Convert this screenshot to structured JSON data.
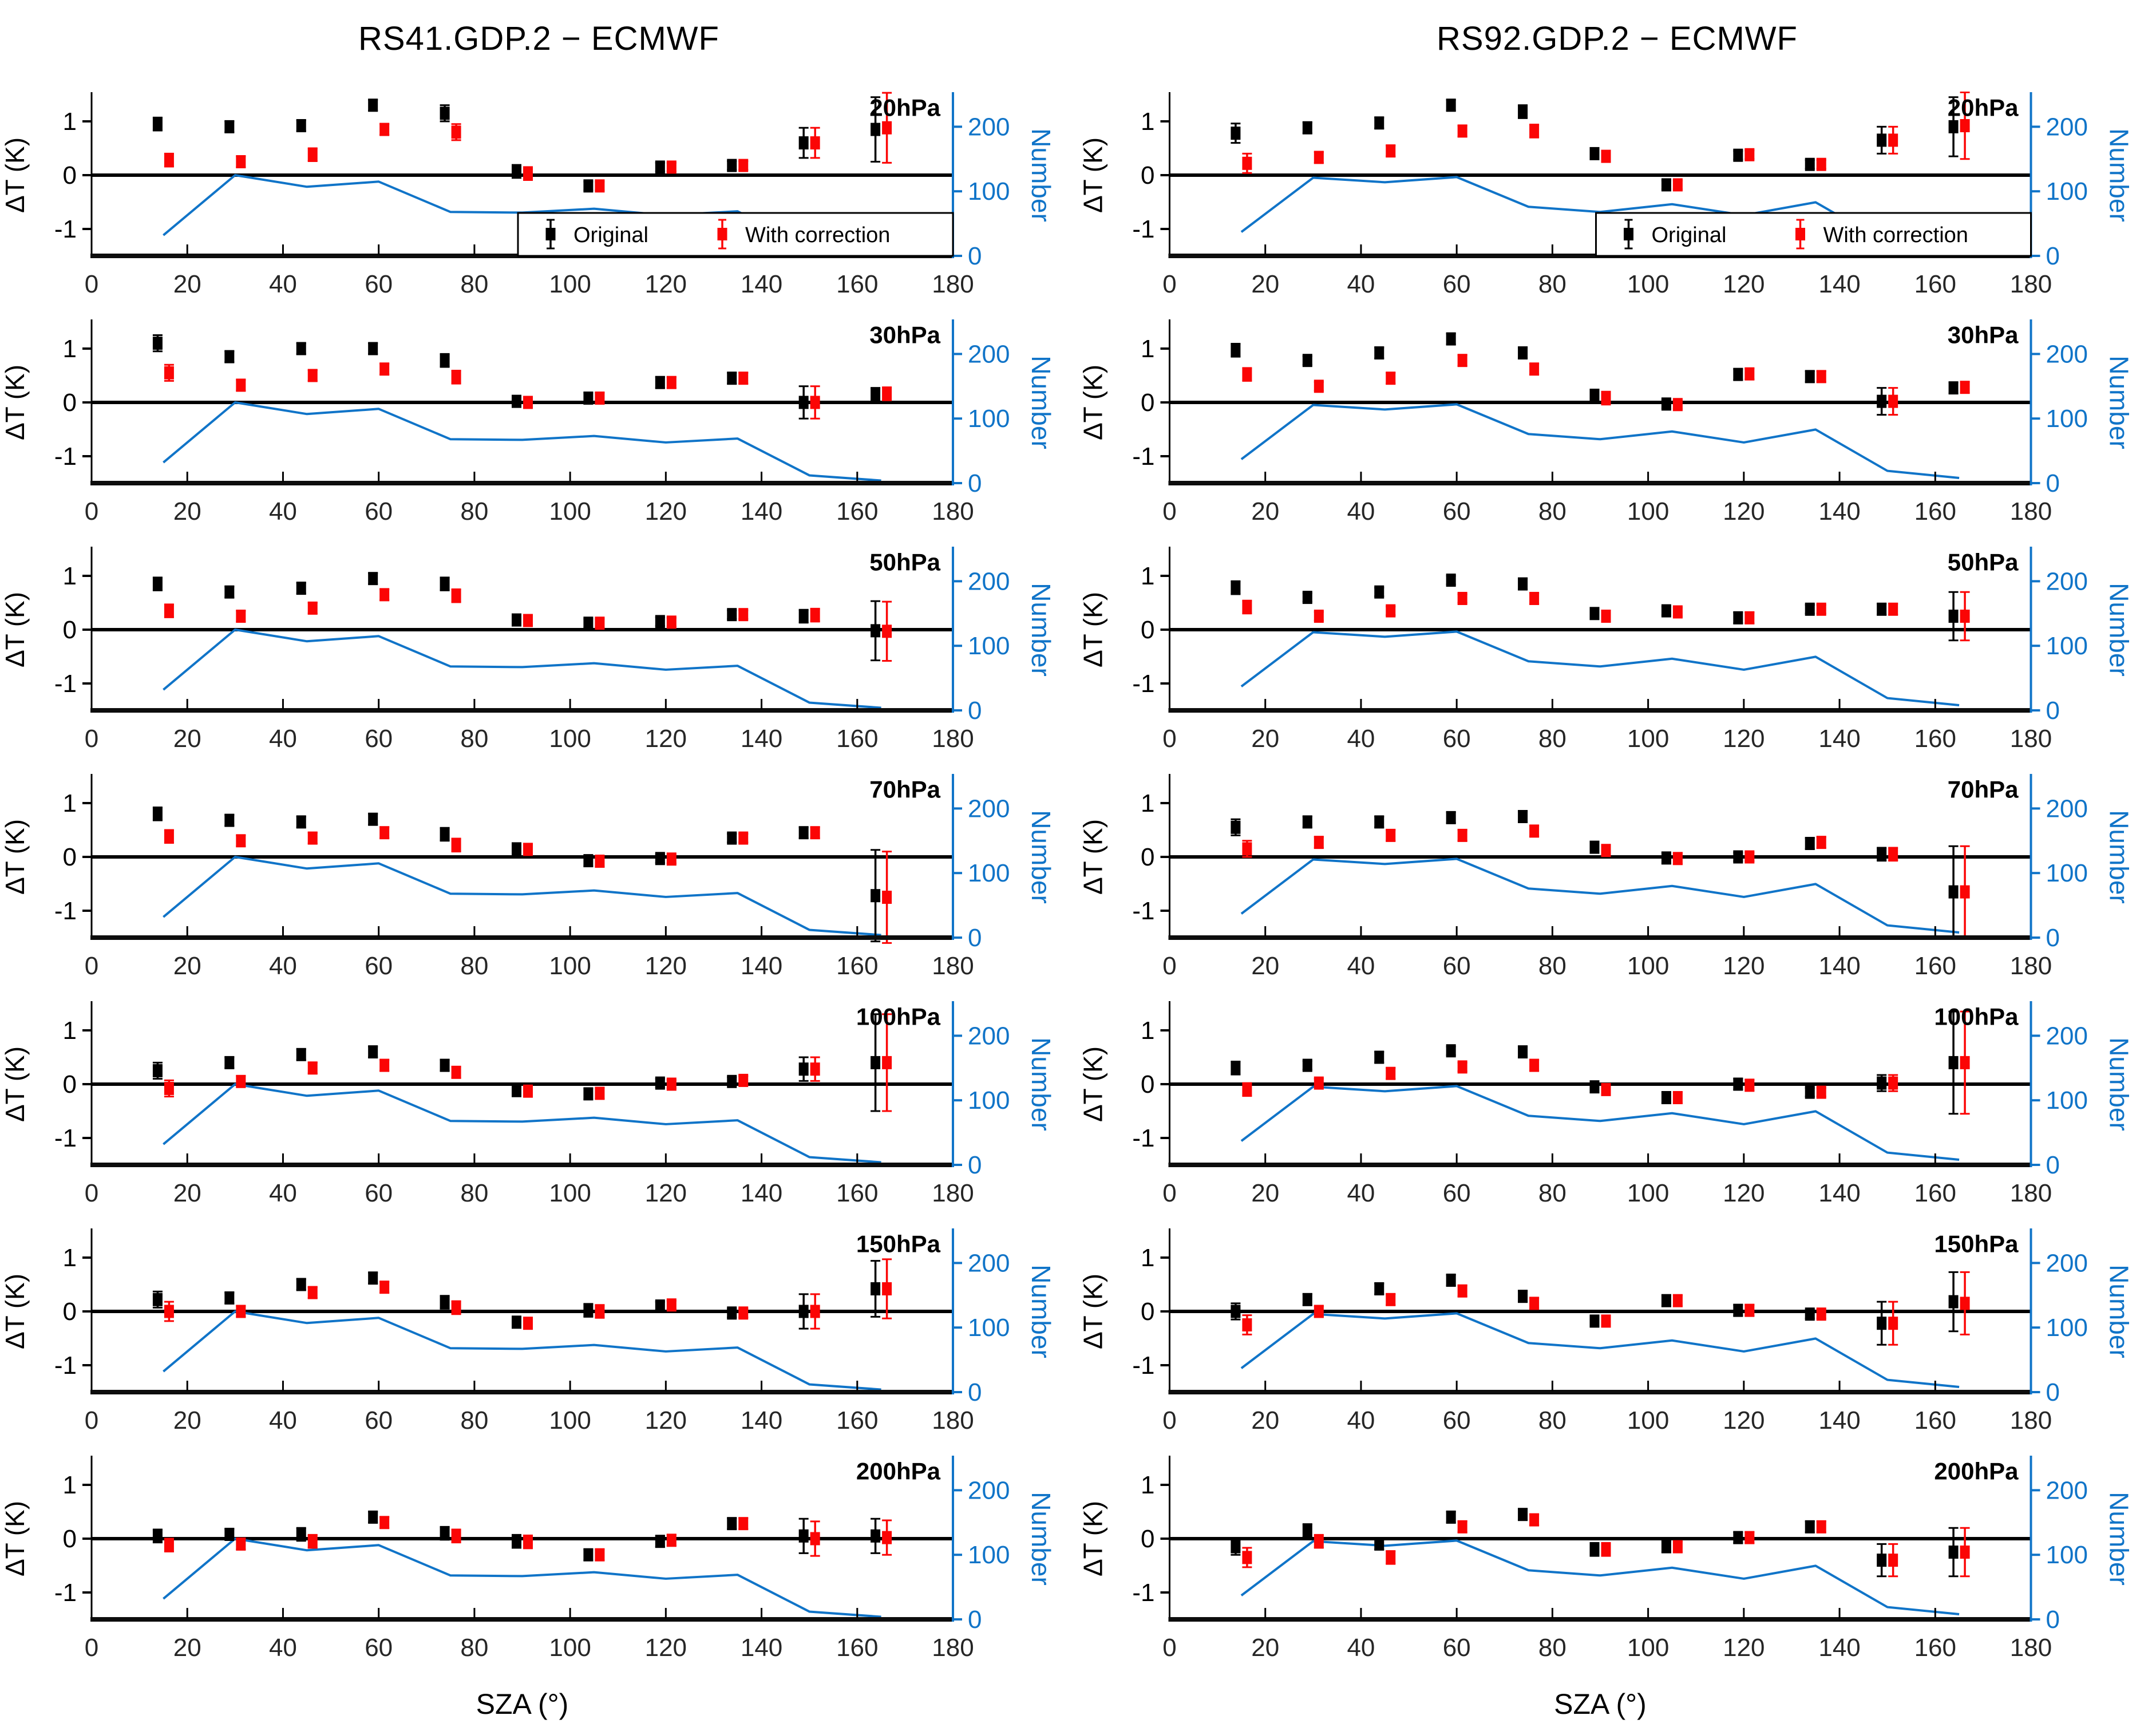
{
  "chart_data": {
    "type": "scatter",
    "subtype": "7x2 panel grid, squares with error bars plus secondary-axis count line",
    "xlabel": "SZA (°)",
    "ylabel": "ΔT (K)",
    "y2label": "Number",
    "x": [
      15,
      30,
      45,
      60,
      75,
      90,
      105,
      120,
      135,
      150,
      165
    ],
    "x_ticks": [
      0,
      20,
      40,
      60,
      80,
      100,
      120,
      140,
      160,
      180
    ],
    "xlim": [
      0,
      180
    ],
    "y_ticks": [
      -1,
      0,
      1
    ],
    "ylim": [
      -1.5,
      1.5
    ],
    "y2_ticks": [
      0,
      100,
      200
    ],
    "y2lim": [
      0,
      250
    ],
    "grid": "off",
    "zero_line": true,
    "legend": {
      "original": "Original",
      "with_correction": "With correction",
      "position": "lower-right inside first-row panels"
    },
    "colors": {
      "original": "#000000",
      "with_correction": "#fb0505",
      "number_line": "#1074c8"
    },
    "columns": [
      {
        "title": "RS41.GDP.2 − ECMWF",
        "number": [
          32,
          125,
          107,
          115,
          68,
          67,
          73,
          63,
          69,
          12,
          4
        ],
        "panels": [
          {
            "label": "20hPa",
            "original": [
              0.95,
              0.9,
              0.92,
              1.3,
              1.15,
              0.07,
              -0.2,
              0.15,
              0.18,
              0.6,
              0.85
            ],
            "original_err": [
              0.12,
              0.1,
              0.1,
              0.1,
              0.15,
              0.12,
              0.08,
              0.08,
              0.08,
              0.28,
              0.6
            ],
            "with_correction": [
              0.28,
              0.25,
              0.38,
              0.85,
              0.8,
              0.03,
              -0.2,
              0.15,
              0.18,
              0.6,
              0.88
            ],
            "with_correction_err": [
              0.12,
              0.1,
              0.12,
              0.1,
              0.15,
              0.12,
              0.08,
              0.08,
              0.08,
              0.28,
              0.65
            ]
          },
          {
            "label": "30hPa",
            "original": [
              1.1,
              0.85,
              1.0,
              1.0,
              0.78,
              0.02,
              0.08,
              0.37,
              0.45,
              0.0,
              0.15
            ],
            "original_err": [
              0.15,
              0.1,
              0.1,
              0.1,
              0.12,
              0.1,
              0.1,
              0.1,
              0.1,
              0.3,
              0.12
            ],
            "with_correction": [
              0.55,
              0.32,
              0.5,
              0.62,
              0.47,
              0.0,
              0.08,
              0.37,
              0.45,
              0.0,
              0.16
            ],
            "with_correction_err": [
              0.15,
              0.1,
              0.1,
              0.1,
              0.12,
              0.1,
              0.1,
              0.1,
              0.1,
              0.3,
              0.12
            ]
          },
          {
            "label": "50hPa",
            "original": [
              0.85,
              0.7,
              0.77,
              0.95,
              0.85,
              0.18,
              0.12,
              0.15,
              0.28,
              0.25,
              -0.02
            ],
            "original_err": [
              0.12,
              0.1,
              0.1,
              0.1,
              0.12,
              0.1,
              0.08,
              0.08,
              0.08,
              0.12,
              0.55
            ],
            "with_correction": [
              0.35,
              0.25,
              0.4,
              0.65,
              0.63,
              0.17,
              0.12,
              0.14,
              0.28,
              0.27,
              -0.03
            ],
            "with_correction_err": [
              0.12,
              0.1,
              0.1,
              0.1,
              0.12,
              0.1,
              0.08,
              0.08,
              0.08,
              0.12,
              0.55
            ]
          },
          {
            "label": "70hPa",
            "original": [
              0.8,
              0.68,
              0.65,
              0.7,
              0.42,
              0.15,
              -0.07,
              -0.03,
              0.35,
              0.45,
              -0.72
            ],
            "original_err": [
              0.12,
              0.1,
              0.1,
              0.1,
              0.12,
              0.1,
              0.1,
              0.08,
              0.08,
              0.1,
              0.85
            ],
            "with_correction": [
              0.38,
              0.3,
              0.35,
              0.45,
              0.22,
              0.14,
              -0.08,
              -0.04,
              0.35,
              0.45,
              -0.75
            ],
            "with_correction_err": [
              0.12,
              0.1,
              0.1,
              0.1,
              0.12,
              0.1,
              0.1,
              0.08,
              0.08,
              0.1,
              0.85
            ]
          },
          {
            "label": "100hPa",
            "original": [
              0.25,
              0.4,
              0.55,
              0.6,
              0.35,
              -0.12,
              -0.18,
              0.02,
              0.05,
              0.28,
              0.4
            ],
            "original_err": [
              0.15,
              0.1,
              0.1,
              0.1,
              0.1,
              0.08,
              0.1,
              0.08,
              0.08,
              0.22,
              0.9
            ],
            "with_correction": [
              -0.08,
              0.05,
              0.3,
              0.35,
              0.22,
              -0.13,
              -0.17,
              0.0,
              0.07,
              0.28,
              0.4
            ],
            "with_correction_err": [
              0.15,
              0.1,
              0.1,
              0.1,
              0.1,
              0.08,
              0.1,
              0.08,
              0.08,
              0.22,
              0.9
            ]
          },
          {
            "label": "150hPa",
            "original": [
              0.22,
              0.25,
              0.5,
              0.62,
              0.17,
              -0.2,
              0.02,
              0.1,
              -0.03,
              0.0,
              0.42
            ],
            "original_err": [
              0.15,
              0.1,
              0.1,
              0.1,
              0.12,
              0.1,
              0.12,
              0.08,
              0.08,
              0.32,
              0.52
            ],
            "with_correction": [
              0.0,
              0.0,
              0.35,
              0.45,
              0.07,
              -0.22,
              0.0,
              0.12,
              -0.03,
              0.0,
              0.42
            ],
            "with_correction_err": [
              0.18,
              0.1,
              0.1,
              0.1,
              0.12,
              0.1,
              0.12,
              0.08,
              0.08,
              0.32,
              0.55
            ]
          },
          {
            "label": "200hPa",
            "original": [
              0.05,
              0.08,
              0.08,
              0.4,
              0.1,
              -0.05,
              -0.3,
              -0.05,
              0.28,
              0.05,
              0.05
            ],
            "original_err": [
              0.12,
              0.1,
              0.12,
              0.1,
              0.12,
              0.12,
              0.1,
              0.1,
              0.1,
              0.32,
              0.32
            ],
            "with_correction": [
              -0.12,
              -0.1,
              -0.05,
              0.3,
              0.05,
              -0.06,
              -0.3,
              -0.03,
              0.28,
              0.0,
              0.02
            ],
            "with_correction_err": [
              0.12,
              0.1,
              0.12,
              0.1,
              0.12,
              0.12,
              0.1,
              0.1,
              0.1,
              0.32,
              0.32
            ]
          }
        ]
      },
      {
        "title": "RS92.GDP.2 − ECMWF",
        "number": [
          37,
          121,
          114,
          122,
          76,
          68,
          80,
          63,
          83,
          19,
          8
        ],
        "panels": [
          {
            "label": "20hPa",
            "original": [
              0.78,
              0.88,
              0.97,
              1.3,
              1.18,
              0.4,
              -0.18,
              0.37,
              0.2,
              0.65,
              0.9
            ],
            "original_err": [
              0.18,
              0.1,
              0.1,
              0.1,
              0.12,
              0.1,
              0.08,
              0.08,
              0.08,
              0.25,
              0.55
            ],
            "with_correction": [
              0.22,
              0.33,
              0.45,
              0.82,
              0.82,
              0.35,
              -0.18,
              0.38,
              0.2,
              0.65,
              0.92
            ],
            "with_correction_err": [
              0.18,
              0.1,
              0.1,
              0.1,
              0.12,
              0.1,
              0.08,
              0.08,
              0.08,
              0.25,
              0.62
            ]
          },
          {
            "label": "30hPa",
            "original": [
              0.97,
              0.78,
              0.92,
              1.18,
              0.92,
              0.12,
              -0.03,
              0.52,
              0.48,
              0.02,
              0.27
            ],
            "original_err": [
              0.12,
              0.08,
              0.1,
              0.1,
              0.1,
              0.12,
              0.08,
              0.1,
              0.1,
              0.25,
              0.1
            ],
            "with_correction": [
              0.52,
              0.3,
              0.45,
              0.78,
              0.62,
              0.08,
              -0.04,
              0.53,
              0.48,
              0.02,
              0.28
            ],
            "with_correction_err": [
              0.12,
              0.08,
              0.1,
              0.1,
              0.1,
              0.12,
              0.08,
              0.1,
              0.1,
              0.25,
              0.1
            ]
          },
          {
            "label": "50hPa",
            "original": [
              0.78,
              0.6,
              0.7,
              0.92,
              0.85,
              0.3,
              0.35,
              0.22,
              0.38,
              0.38,
              0.25
            ],
            "original_err": [
              0.12,
              0.08,
              0.08,
              0.08,
              0.1,
              0.1,
              0.08,
              0.1,
              0.08,
              0.1,
              0.45
            ],
            "with_correction": [
              0.42,
              0.25,
              0.35,
              0.58,
              0.58,
              0.25,
              0.33,
              0.22,
              0.38,
              0.38,
              0.25
            ],
            "with_correction_err": [
              0.12,
              0.08,
              0.08,
              0.08,
              0.1,
              0.1,
              0.08,
              0.1,
              0.08,
              0.1,
              0.45
            ]
          },
          {
            "label": "70hPa",
            "original": [
              0.55,
              0.65,
              0.65,
              0.73,
              0.75,
              0.18,
              -0.02,
              0.0,
              0.25,
              0.05,
              -0.65
            ],
            "original_err": [
              0.15,
              0.1,
              0.1,
              0.1,
              0.1,
              0.1,
              0.1,
              0.08,
              0.1,
              0.12,
              0.85
            ],
            "with_correction": [
              0.15,
              0.27,
              0.4,
              0.4,
              0.48,
              0.12,
              -0.03,
              0.0,
              0.27,
              0.05,
              -0.65
            ],
            "with_correction_err": [
              0.15,
              0.1,
              0.1,
              0.1,
              0.1,
              0.1,
              0.1,
              0.08,
              0.1,
              0.12,
              0.85
            ]
          },
          {
            "label": "100hPa",
            "original": [
              0.3,
              0.35,
              0.5,
              0.62,
              0.6,
              -0.05,
              -0.25,
              0.0,
              -0.15,
              0.02,
              0.4
            ],
            "original_err": [
              0.12,
              0.08,
              0.1,
              0.08,
              0.1,
              0.1,
              0.1,
              0.1,
              0.08,
              0.15,
              0.95
            ],
            "with_correction": [
              -0.1,
              0.02,
              0.2,
              0.32,
              0.35,
              -0.1,
              -0.25,
              -0.02,
              -0.15,
              0.02,
              0.4
            ],
            "with_correction_err": [
              0.12,
              0.08,
              0.1,
              0.08,
              0.1,
              0.1,
              0.1,
              0.1,
              0.08,
              0.15,
              0.95
            ]
          },
          {
            "label": "150hPa",
            "original": [
              0.0,
              0.22,
              0.42,
              0.58,
              0.28,
              -0.18,
              0.2,
              0.02,
              -0.05,
              -0.22,
              0.18
            ],
            "original_err": [
              0.15,
              0.1,
              0.1,
              0.1,
              0.1,
              0.1,
              0.1,
              0.1,
              0.08,
              0.4,
              0.55
            ],
            "with_correction": [
              -0.25,
              0.0,
              0.22,
              0.38,
              0.15,
              -0.18,
              0.2,
              0.02,
              -0.05,
              -0.22,
              0.15
            ],
            "with_correction_err": [
              0.18,
              0.1,
              0.1,
              0.1,
              0.1,
              0.1,
              0.1,
              0.1,
              0.08,
              0.4,
              0.58
            ]
          },
          {
            "label": "200hPa",
            "original": [
              -0.15,
              0.15,
              -0.1,
              0.4,
              0.45,
              -0.2,
              -0.15,
              0.02,
              0.22,
              -0.4,
              -0.25
            ],
            "original_err": [
              0.15,
              0.12,
              0.1,
              0.1,
              0.1,
              0.12,
              0.1,
              0.1,
              0.1,
              0.3,
              0.45
            ],
            "with_correction": [
              -0.35,
              -0.05,
              -0.35,
              0.22,
              0.35,
              -0.2,
              -0.15,
              0.02,
              0.22,
              -0.4,
              -0.25
            ],
            "with_correction_err": [
              0.18,
              0.12,
              0.12,
              0.1,
              0.1,
              0.12,
              0.1,
              0.1,
              0.1,
              0.3,
              0.45
            ]
          }
        ]
      }
    ]
  }
}
